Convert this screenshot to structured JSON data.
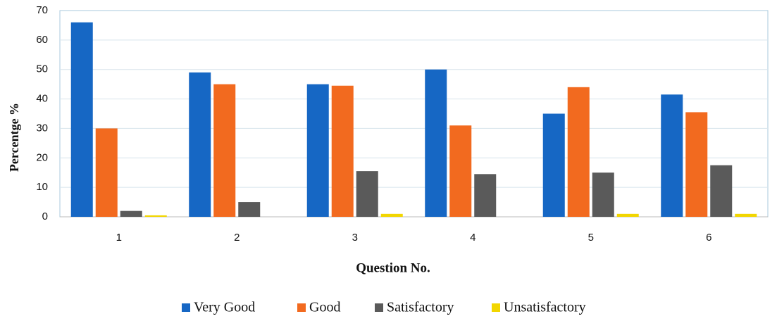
{
  "chart_data": {
    "type": "bar",
    "x_label": "Question No.",
    "y_label": "Percentge %",
    "categories": [
      "1",
      "2",
      "3",
      "4",
      "5",
      "6"
    ],
    "series": [
      {
        "name": "Very Good",
        "color": "#1667c4",
        "values": [
          66,
          49,
          45,
          50,
          35,
          41.5
        ]
      },
      {
        "name": "Good",
        "color": "#f26a1f",
        "values": [
          30,
          45,
          44.5,
          31,
          44,
          35.5
        ]
      },
      {
        "name": "Satisfactory",
        "color": "#5a5a5a",
        "values": [
          2,
          5,
          15.5,
          14.5,
          15,
          17.5
        ]
      },
      {
        "name": "Unsatisfactory",
        "color": "#f2d600",
        "values": [
          0.5,
          0,
          1,
          0,
          1,
          1
        ]
      }
    ],
    "ylim": [
      0,
      70
    ],
    "yticks": [
      0,
      10,
      20,
      30,
      40,
      50,
      60,
      70
    ],
    "grid": true
  }
}
